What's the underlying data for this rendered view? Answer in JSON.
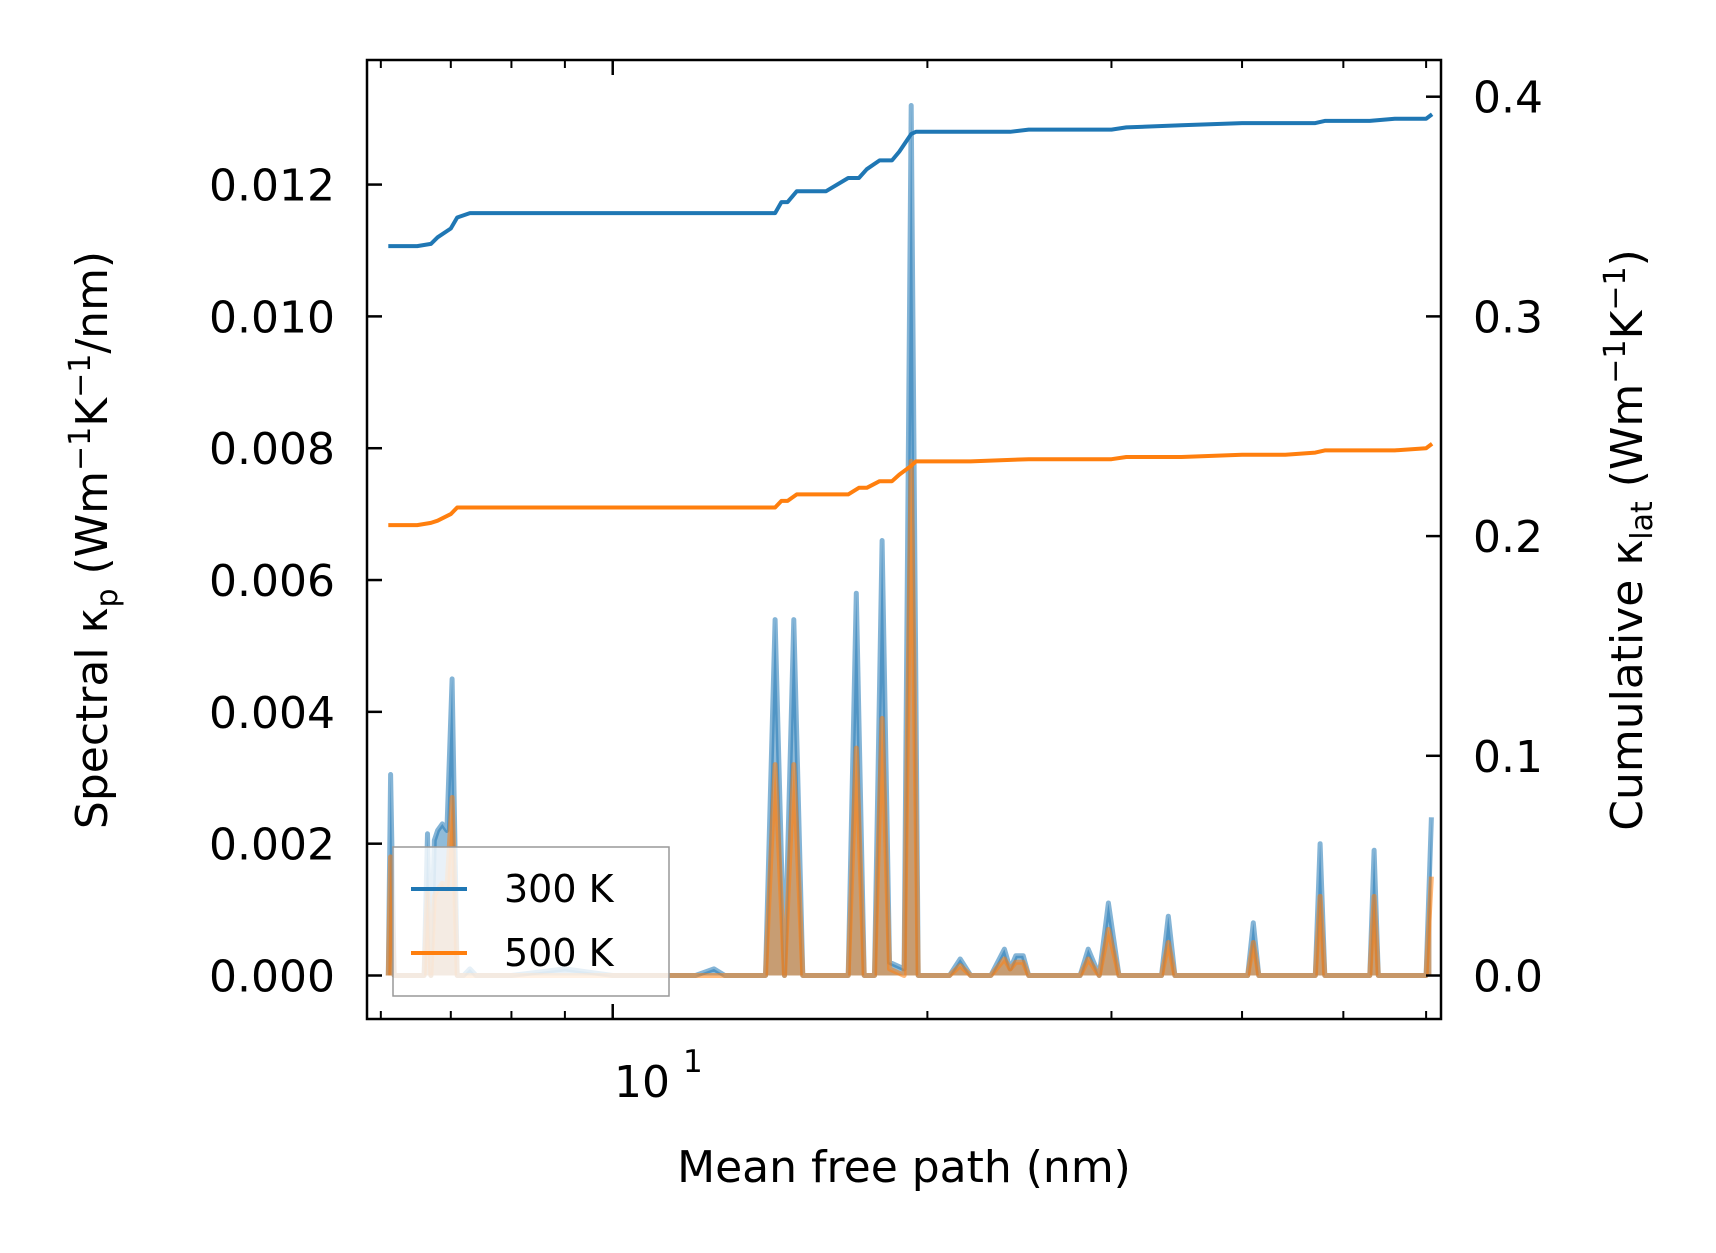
{
  "chart_data": {
    "type": "line",
    "xscale": "log",
    "xlim": [
      5.82,
      62.0
    ],
    "x_major_ticks": [
      {
        "value": 10,
        "base": "10",
        "exp": "1"
      }
    ],
    "x_minor_ticks": [
      6,
      7,
      8,
      9,
      20,
      30,
      40,
      50,
      60
    ],
    "xlabel": "Mean free path (nm)",
    "left_axis": {
      "ylabel": {
        "main": "Spectral κ",
        "sub": "p",
        "u1": " (Wm",
        "s1": "−1",
        "u2": "K",
        "s2": "−1",
        "u3": "/nm)"
      },
      "ylim": [
        -0.00066,
        0.01389
      ],
      "ticks": [
        0.0,
        0.002,
        0.004,
        0.006,
        0.008,
        0.01,
        0.012
      ],
      "tick_labels": [
        "0.000",
        "0.002",
        "0.004",
        "0.006",
        "0.008",
        "0.010",
        "0.012"
      ]
    },
    "right_axis": {
      "ylabel": {
        "main": "Cumulative κ",
        "sub": "lat",
        "u1": " (Wm",
        "s1": "−1",
        "u2": "K",
        "s2": "−1",
        "u3": ")"
      },
      "ylim": [
        -0.0198,
        0.4167
      ],
      "ticks": [
        0.0,
        0.1,
        0.2,
        0.3,
        0.4
      ],
      "tick_labels": [
        "0.0",
        "0.1",
        "0.2",
        "0.3",
        "0.4"
      ]
    },
    "legend": {
      "position": "lower-left",
      "entries": [
        {
          "label": "300 K",
          "color": "#1f77b4"
        },
        {
          "label": "500 K",
          "color": "#ff7f0e"
        }
      ]
    },
    "series": [
      {
        "name": "300 K",
        "color": "#1f77b4",
        "spectral": {
          "x": [
            6.1,
            6.13,
            6.18,
            6.6,
            6.65,
            6.7,
            6.75,
            6.8,
            6.87,
            6.94,
            7.02,
            7.1,
            7.2,
            7.3,
            7.4,
            8.0,
            9.0,
            10.0,
            12.0,
            12.5,
            12.8,
            13.2,
            14.0,
            14.3,
            14.6,
            14.9,
            15.2,
            15.5,
            15.8,
            16.8,
            17.1,
            17.4,
            17.8,
            18.1,
            18.4,
            19.0,
            19.3,
            19.6,
            20.0,
            21.0,
            21.5,
            22.0,
            23.0,
            23.7,
            24.0,
            24.3,
            24.7,
            25.0,
            25.8,
            28.0,
            28.5,
            29.2,
            29.8,
            30.5,
            33.5,
            34.0,
            34.5,
            40.5,
            41.0,
            41.5,
            47.0,
            47.5,
            48.0,
            53.0,
            53.5,
            54.0,
            60.0,
            60.7
          ],
          "y": [
            0,
            0.00305,
            0,
            0,
            0.00215,
            0,
            0.00205,
            0.0022,
            0.0023,
            0.0022,
            0.0045,
            0,
            0,
            0.0001,
            0,
            0,
            0.0001,
            0,
            0,
            0.0001,
            0,
            0,
            0,
            0.0054,
            0,
            0.0054,
            0,
            0,
            0,
            0,
            0.0058,
            0,
            0,
            0.0066,
            0.0002,
            0.0001,
            0.0132,
            0,
            0,
            0,
            0.00025,
            0,
            0,
            0.0004,
            0.0001,
            0.0003,
            0.0003,
            0,
            0,
            0,
            0.0004,
            0,
            0.0011,
            0,
            0,
            0.0009,
            0,
            0,
            0.0008,
            0,
            0,
            0.002,
            0,
            0,
            0.0019,
            0,
            0,
            0.0024
          ]
        },
        "cumulative": {
          "x": [
            6.1,
            6.5,
            6.7,
            6.8,
            7.0,
            7.1,
            7.3,
            8.0,
            10.0,
            12.0,
            13.5,
            14.0,
            14.3,
            14.5,
            14.7,
            15.0,
            15.5,
            16.0,
            16.8,
            17.2,
            17.5,
            18.0,
            18.5,
            18.8,
            19.3,
            19.5,
            20.0,
            22.0,
            24.0,
            25.0,
            30.0,
            31.0,
            35.0,
            40.0,
            44.0,
            47.0,
            48.0,
            52.0,
            53.0,
            56.0,
            60.0,
            60.8
          ],
          "y": [
            0.332,
            0.332,
            0.333,
            0.336,
            0.34,
            0.345,
            0.347,
            0.347,
            0.347,
            0.347,
            0.347,
            0.347,
            0.347,
            0.352,
            0.352,
            0.357,
            0.357,
            0.357,
            0.363,
            0.363,
            0.367,
            0.371,
            0.371,
            0.375,
            0.383,
            0.384,
            0.384,
            0.384,
            0.384,
            0.385,
            0.385,
            0.386,
            0.387,
            0.388,
            0.388,
            0.388,
            0.389,
            0.389,
            0.389,
            0.39,
            0.39,
            0.392
          ]
        }
      },
      {
        "name": "500 K",
        "color": "#ff7f0e",
        "spectral": {
          "x": [
            6.1,
            6.13,
            6.18,
            6.6,
            6.65,
            6.7,
            6.75,
            6.8,
            6.87,
            6.94,
            7.02,
            7.1,
            14.0,
            14.3,
            14.6,
            14.9,
            15.2,
            16.8,
            17.1,
            17.4,
            17.8,
            18.1,
            18.4,
            19.0,
            19.3,
            19.6,
            21.0,
            21.5,
            22.0,
            23.0,
            23.7,
            24.0,
            24.3,
            24.7,
            25.0,
            28.0,
            28.5,
            29.2,
            29.8,
            30.5,
            33.5,
            34.0,
            34.5,
            40.5,
            41.0,
            41.5,
            47.0,
            47.5,
            48.0,
            53.0,
            53.5,
            54.0,
            60.0,
            60.7
          ],
          "y": [
            0,
            0.0018,
            0,
            0,
            0.0013,
            0,
            0.0012,
            0.0013,
            0.0014,
            0.0013,
            0.0027,
            0,
            0,
            0.0032,
            0,
            0.0032,
            0,
            0,
            0.00345,
            0,
            0,
            0.0039,
            0.0001,
            0,
            0.0078,
            0,
            0,
            0.00015,
            0,
            0,
            0.00025,
            0.0001,
            0.0002,
            0.0002,
            0,
            0,
            0.00025,
            0,
            0.0007,
            0,
            0,
            0.0005,
            0,
            0,
            0.0005,
            0,
            0,
            0.0012,
            0,
            0,
            0.0012,
            0,
            0,
            0.0015
          ]
        },
        "cumulative": {
          "x": [
            6.1,
            6.5,
            6.7,
            6.8,
            7.0,
            7.1,
            7.3,
            10.0,
            14.0,
            14.3,
            14.5,
            14.7,
            15.0,
            16.0,
            16.8,
            17.2,
            17.5,
            18.0,
            18.5,
            18.8,
            19.3,
            19.5,
            22.0,
            25.0,
            30.0,
            31.0,
            35.0,
            40.0,
            44.0,
            47.0,
            48.0,
            53.0,
            56.0,
            60.0,
            60.8
          ],
          "y": [
            0.205,
            0.205,
            0.206,
            0.207,
            0.21,
            0.213,
            0.213,
            0.213,
            0.213,
            0.213,
            0.216,
            0.216,
            0.219,
            0.219,
            0.219,
            0.222,
            0.222,
            0.225,
            0.225,
            0.228,
            0.232,
            0.234,
            0.234,
            0.235,
            0.235,
            0.236,
            0.236,
            0.237,
            0.237,
            0.238,
            0.239,
            0.239,
            0.239,
            0.24,
            0.242
          ]
        }
      }
    ]
  }
}
